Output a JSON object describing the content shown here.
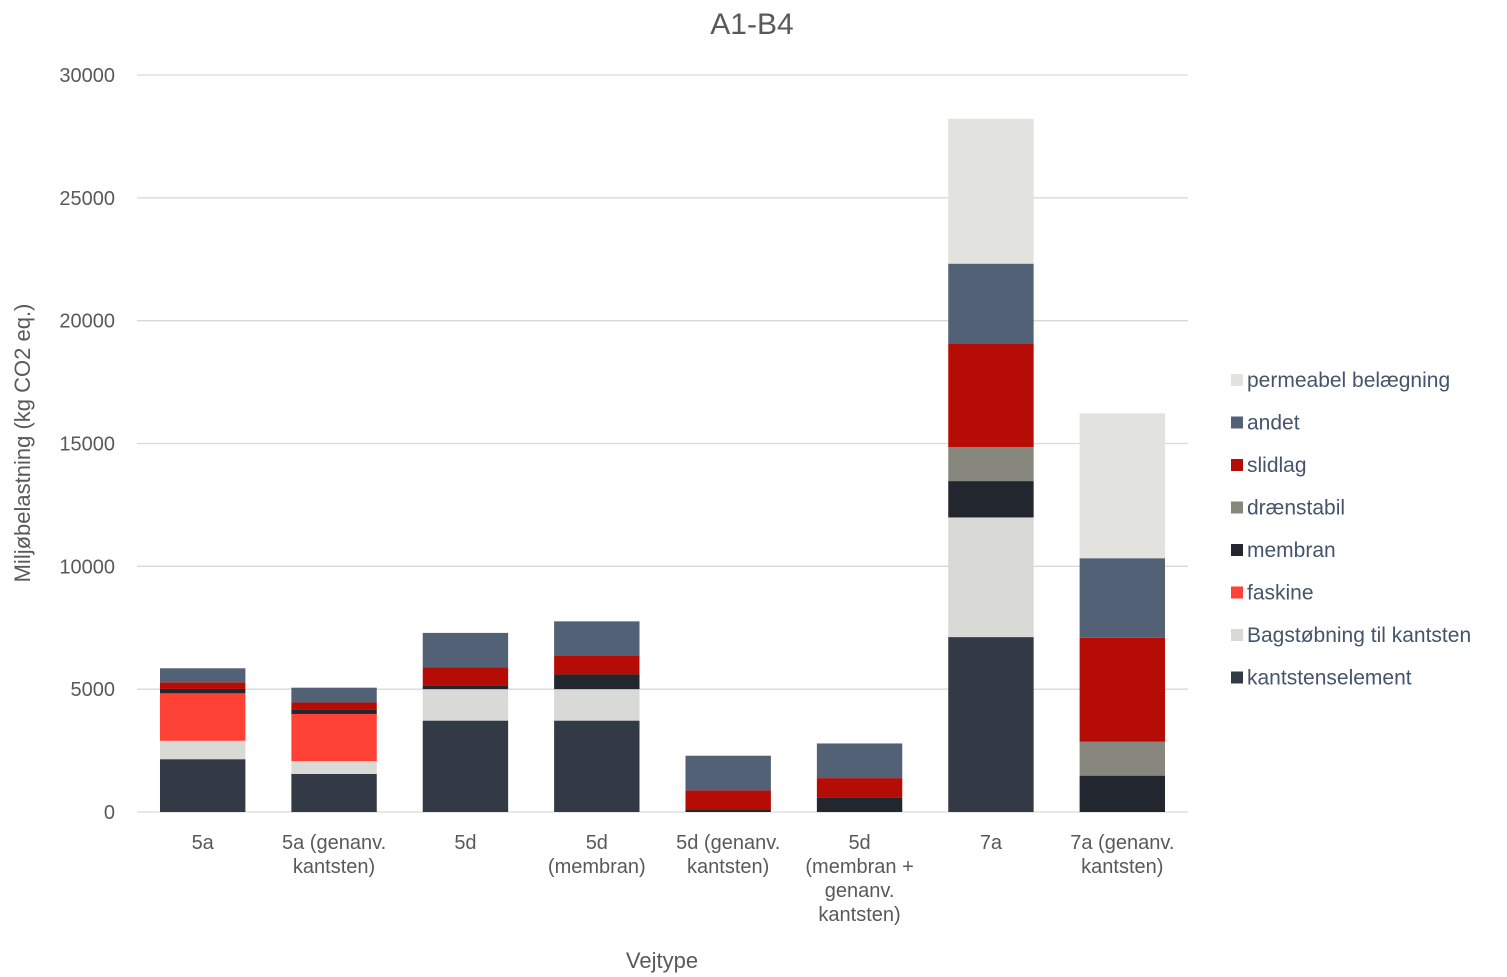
{
  "chart_data": {
    "type": "bar",
    "stacked": true,
    "title": "A1-B4",
    "xlabel": "Vejtype",
    "ylabel": "Miljøbelastning (kg CO2 eq.)",
    "ylim": [
      0,
      30000
    ],
    "yticks": [
      0,
      5000,
      10000,
      15000,
      20000,
      25000,
      30000
    ],
    "grid": true,
    "legend_position": "right",
    "categories": [
      [
        "5a"
      ],
      [
        "5a (genanv.",
        "kantsten)"
      ],
      [
        "5d"
      ],
      [
        "5d",
        "(membran)"
      ],
      [
        "5d (genanv.",
        "kantsten)"
      ],
      [
        "5d",
        "(membran +",
        "genanv.",
        "kantsten)"
      ],
      [
        "7a"
      ],
      [
        "7a (genanv.",
        "kantsten)"
      ]
    ],
    "series": [
      {
        "name": "kantstenselement",
        "color": "#333A45",
        "values": [
          2150,
          1550,
          3720,
          3720,
          0,
          0,
          7120,
          0
        ]
      },
      {
        "name": "Bagstøbning til kantsten",
        "color": "#D9D9D5",
        "values": [
          750,
          520,
          1280,
          1280,
          0,
          0,
          4870,
          0
        ]
      },
      {
        "name": "faskine",
        "color": "#FF4136",
        "values": [
          1930,
          1920,
          0,
          0,
          0,
          0,
          0,
          0
        ]
      },
      {
        "name": "membran",
        "color": "#22262E",
        "values": [
          180,
          190,
          130,
          600,
          100,
          600,
          1480,
          1480
        ]
      },
      {
        "name": "drænstabil",
        "color": "#87877E",
        "values": [
          0,
          0,
          0,
          0,
          0,
          0,
          1380,
          1380
        ]
      },
      {
        "name": "slidlag",
        "color": "#B50D05",
        "values": [
          270,
          280,
          750,
          750,
          780,
          780,
          4230,
          4230
        ]
      },
      {
        "name": "andet",
        "color": "#526175",
        "values": [
          570,
          600,
          1410,
          1410,
          1410,
          1410,
          3240,
          3240
        ]
      },
      {
        "name": "permeabel belægning",
        "color": "#E2E2DE",
        "values": [
          0,
          0,
          0,
          0,
          0,
          0,
          5900,
          5900
        ]
      }
    ]
  }
}
